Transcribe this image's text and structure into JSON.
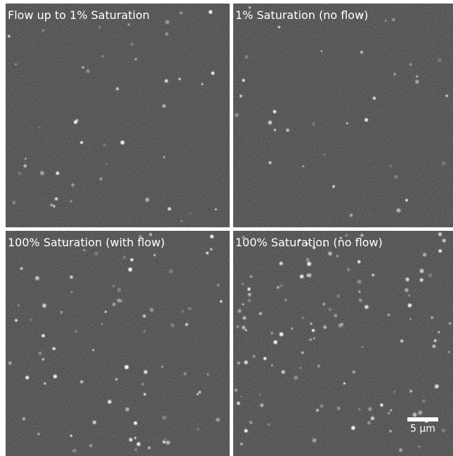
{
  "panels": [
    {
      "label": "Flow up to 1% Saturation"
    },
    {
      "label": "1% Saturation (no flow)"
    },
    {
      "label": "100% Saturation (with flow)"
    },
    {
      "label": "100% Saturation (no flow)"
    }
  ],
  "scale_bar": {
    "label": "5 μm"
  }
}
